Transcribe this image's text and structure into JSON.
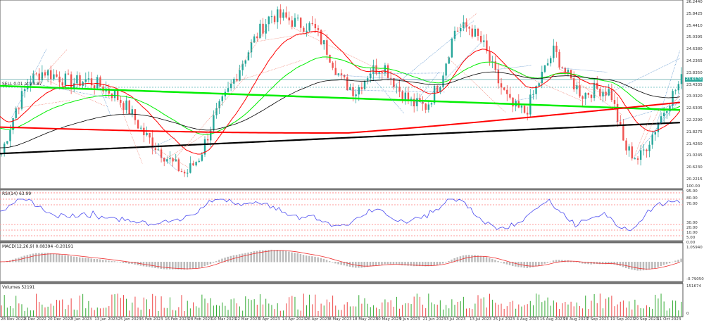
{
  "main": {
    "trade_label": "SELL 0.01 at 23.87",
    "current_price": "23.6570",
    "price_ticks": [
      "26.2440",
      "25.8425",
      "25.4410",
      "25.0395",
      "24.6380",
      "24.2365",
      "23.8350",
      "23.4335",
      "23.0320",
      "22.6305",
      "22.2290",
      "21.8275",
      "21.4260",
      "21.0245",
      "20.6230",
      "20.2215"
    ],
    "price_range": [
      20.2215,
      26.244
    ],
    "approx_price_path": [
      21.1,
      22.6,
      23.6,
      23.9,
      23.7,
      23.5,
      23.6,
      23.4,
      23.1,
      22.6,
      21.8,
      21.3,
      20.8,
      20.4,
      21.0,
      22.3,
      23.2,
      24.2,
      25.1,
      25.8,
      25.7,
      25.5,
      25.4,
      24.6,
      23.6,
      23.2,
      23.9,
      24.1,
      23.3,
      22.8,
      22.7,
      23.6,
      25.3,
      25.4,
      24.8,
      23.6,
      22.7,
      22.5,
      23.6,
      24.6,
      23.7,
      23.1,
      23.3,
      23.2,
      21.3,
      20.9,
      21.8,
      22.8,
      23.6
    ],
    "colors": {
      "bull": "#26a69a",
      "bear": "#ef5350",
      "ma_black": "#000000",
      "ma_red": "#ff0000",
      "ma_green": "#00ee00"
    }
  },
  "rsi": {
    "label": "RSI(14) 63.99",
    "ticks": [
      "100.00",
      "95.00",
      "80.00",
      "70.00",
      "30.00",
      "20.00",
      "10.00",
      "5.00",
      "0.00"
    ],
    "color": "#4a4af0"
  },
  "macd": {
    "label": "MACD(12,26,9) 0.08394 -0.20191",
    "ticks": [
      "1.05940",
      "-0.79050"
    ]
  },
  "volumes": {
    "label": "Volumes 52191",
    "ticks": [
      "151674",
      "0"
    ]
  },
  "dates": [
    "28 Nov 2022",
    "8 Dec 2022",
    "20 Dec 2022",
    "3 Jan 2023",
    "13 Jan 2023",
    "25 Jan 2023",
    "6 Feb 2023",
    "16 Feb 2023",
    "28 Feb 2023",
    "10 Mar 2023",
    "22 Mar 2023",
    "3 Apr 2023",
    "14 Apr 2023",
    "26 Apr 2023",
    "8 May 2023",
    "18 May 2023",
    "30 May 2023",
    "9 Jun 2023",
    "21 Jun 2023",
    "3 Jul 2023",
    "13 Jul 2023",
    "25 Jul 2023",
    "4 Aug 2023",
    "16 Aug 2023",
    "28 Aug 2023",
    "7 Sep 2023",
    "19 Sep 2023",
    "29 Sep 2023",
    "11 Oct 2023"
  ]
}
